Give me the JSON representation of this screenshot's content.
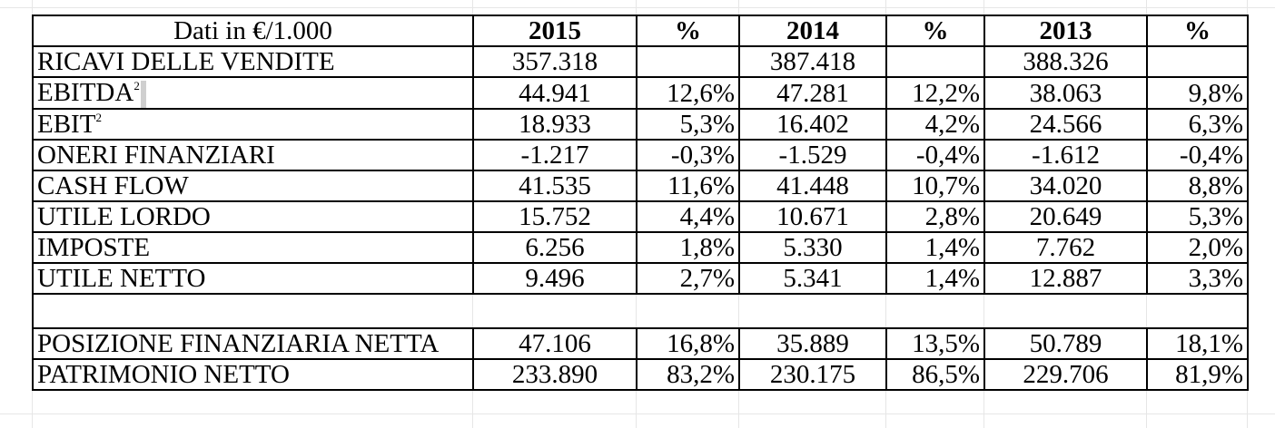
{
  "table": {
    "header": {
      "unit_label": "Dati in €/1.000",
      "y2015": "2015",
      "pct1": "%",
      "y2014": "2014",
      "pct2": "%",
      "y2013": "2013",
      "pct3": "%"
    },
    "rows": [
      {
        "label": "RICAVI DELLE VENDITE",
        "footnote": "",
        "v2015": "357.318",
        "p2015": "",
        "v2014": "387.418",
        "p2014": "",
        "v2013": "388.326",
        "p2013": ""
      },
      {
        "label": "EBITDA",
        "footnote": "2",
        "v2015": "44.941",
        "p2015": "12,6%",
        "v2014": "47.281",
        "p2014": "12,2%",
        "v2013": "38.063",
        "p2013": "9,8%"
      },
      {
        "label": "EBIT",
        "footnote": "2",
        "v2015": "18.933",
        "p2015": "5,3%",
        "v2014": "16.402",
        "p2014": "4,2%",
        "v2013": "24.566",
        "p2013": "6,3%"
      },
      {
        "label": "ONERI FINANZIARI",
        "footnote": "",
        "v2015": "-1.217",
        "p2015": "-0,3%",
        "v2014": "-1.529",
        "p2014": "-0,4%",
        "v2013": "-1.612",
        "p2013": "-0,4%"
      },
      {
        "label": "CASH FLOW",
        "footnote": "",
        "v2015": "41.535",
        "p2015": "11,6%",
        "v2014": "41.448",
        "p2014": "10,7%",
        "v2013": "34.020",
        "p2013": "8,8%"
      },
      {
        "label": "UTILE LORDO",
        "footnote": "",
        "v2015": "15.752",
        "p2015": "4,4%",
        "v2014": "10.671",
        "p2014": "2,8%",
        "v2013": "20.649",
        "p2013": "5,3%"
      },
      {
        "label": "IMPOSTE",
        "footnote": "",
        "v2015": "6.256",
        "p2015": "1,8%",
        "v2014": "5.330",
        "p2014": "1,4%",
        "v2013": "7.762",
        "p2013": "2,0%"
      },
      {
        "label": "UTILE NETTO",
        "footnote": "",
        "v2015": "9.496",
        "p2015": "2,7%",
        "v2014": "5.341",
        "p2014": "1,4%",
        "v2013": "12.887",
        "p2013": "3,3%"
      }
    ],
    "bottom_rows": [
      {
        "label": "POSIZIONE FINANZIARIA NETTA",
        "v2015": "47.106",
        "p2015": "16,8%",
        "v2014": "35.889",
        "p2014": "13,5%",
        "v2013": "50.789",
        "p2013": "18,1%"
      },
      {
        "label": "PATRIMONIO NETTO",
        "v2015": "233.890",
        "p2015": "83,2%",
        "v2014": "230.175",
        "p2014": "86,5%",
        "v2013": "229.706",
        "p2013": "81,9%"
      }
    ]
  }
}
